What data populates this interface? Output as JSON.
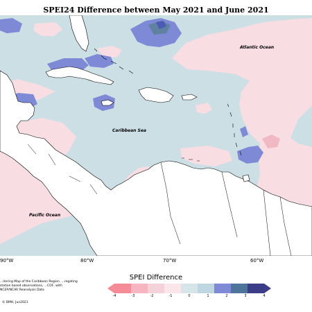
{
  "title": "SPEI24 Difference between May 2021 and June 2021",
  "map": {
    "labels": {
      "atlantic": "Atlantic Ocean",
      "caribbean": "Caribbean Sea",
      "pacific": "Pacific Ocean"
    },
    "longitudes": [
      "90°W",
      "80°W",
      "70°W",
      "60°W"
    ],
    "colors": {
      "land": "#ffffff",
      "neutral": "#ccdfe5",
      "light_pink": "#f8dde2",
      "pink": "#f0b9c4",
      "blue": "#7f8ad6",
      "dark_blue": "#4d5bb5",
      "slate": "#5e82a0",
      "coast": "#000000"
    }
  },
  "legend": {
    "title": "SPEI Difference",
    "ticks": [
      "-4",
      "-3",
      "-2",
      "-1",
      "0",
      "1",
      "2",
      "3",
      "4"
    ],
    "colors": [
      "#f58b97",
      "#f6b5c0",
      "#f3d2d9",
      "#fbe7ea",
      "#d5e5ea",
      "#bed6df",
      "#7f8ad6",
      "#4f749b",
      "#3c3d89"
    ]
  },
  "credit": "...itoring Map of the Caribbean Region. ...regating station based observations, ...COF, with NCEP/NCAR Reanalysis Data",
  "copyright": "© BMH, Jun2021"
}
